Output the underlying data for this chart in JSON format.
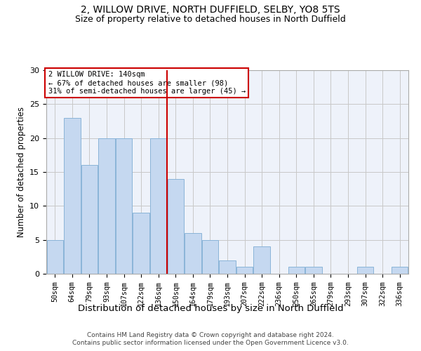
{
  "title1": "2, WILLOW DRIVE, NORTH DUFFIELD, SELBY, YO8 5TS",
  "title2": "Size of property relative to detached houses in North Duffield",
  "xlabel": "Distribution of detached houses by size in North Duffield",
  "ylabel": "Number of detached properties",
  "footnote1": "Contains HM Land Registry data © Crown copyright and database right 2024.",
  "footnote2": "Contains public sector information licensed under the Open Government Licence v3.0.",
  "bar_labels": [
    "50sqm",
    "64sqm",
    "79sqm",
    "93sqm",
    "107sqm",
    "122sqm",
    "136sqm",
    "150sqm",
    "164sqm",
    "179sqm",
    "193sqm",
    "207sqm",
    "222sqm",
    "236sqm",
    "250sqm",
    "265sqm",
    "279sqm",
    "293sqm",
    "307sqm",
    "322sqm",
    "336sqm"
  ],
  "bar_values": [
    5,
    23,
    16,
    20,
    20,
    9,
    20,
    14,
    6,
    5,
    2,
    1,
    4,
    0,
    1,
    1,
    0,
    0,
    1,
    0,
    1
  ],
  "bar_color": "#c5d8f0",
  "bar_edge_color": "#8ab4d8",
  "vline_index": 7,
  "vline_color": "#cc0000",
  "annotation_title": "2 WILLOW DRIVE: 140sqm",
  "annotation_line1": "← 67% of detached houses are smaller (98)",
  "annotation_line2": "31% of semi-detached houses are larger (45) →",
  "annotation_box_color": "#ffffff",
  "annotation_box_edge": "#cc0000",
  "ylim": [
    0,
    30
  ],
  "yticks": [
    0,
    5,
    10,
    15,
    20,
    25,
    30
  ],
  "grid_color": "#c8c8c8",
  "bg_color": "#eef2fa",
  "title1_fontsize": 10,
  "title2_fontsize": 9,
  "xlabel_fontsize": 9.5,
  "ylabel_fontsize": 8.5,
  "footnote_fontsize": 6.5
}
